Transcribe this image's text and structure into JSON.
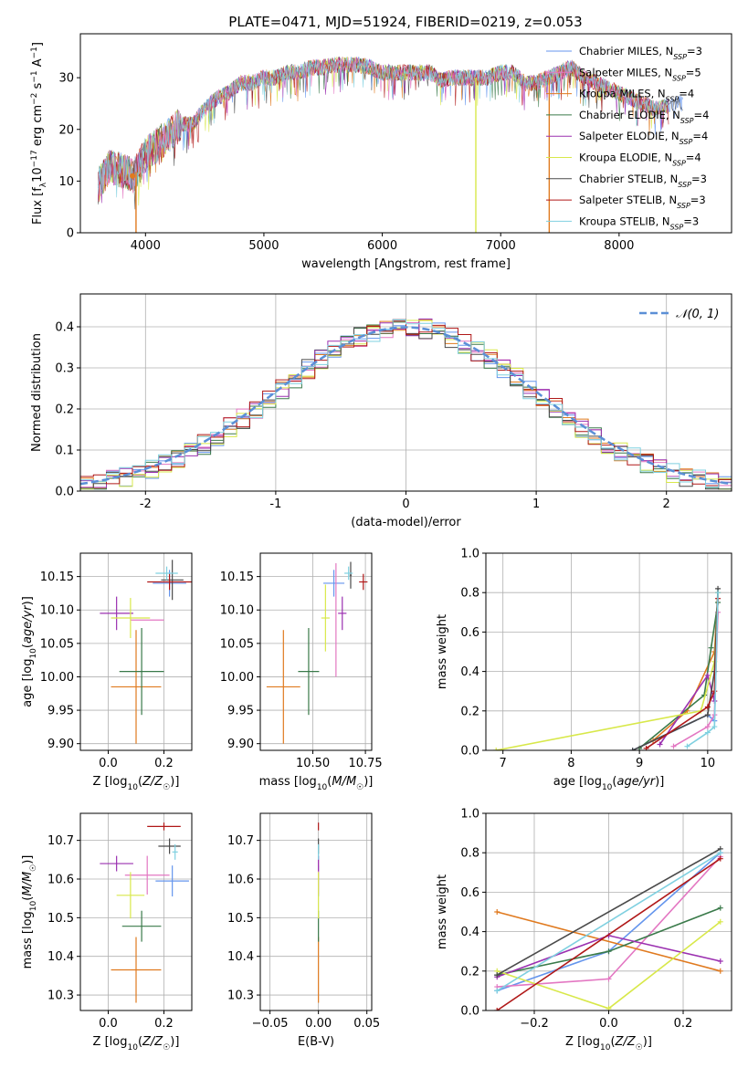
{
  "title": "PLATE=0471, MJD=51924, FIBERID=0219, z=0.053",
  "colors": [
    "#6495ed",
    "#e377c2",
    "#e07a1f",
    "#3a7a4a",
    "#9b30b0",
    "#d8e84a",
    "#4a4a4a",
    "#b01818",
    "#7fd0e0"
  ],
  "legend1": [
    "Chabrier MILES, N_SSP=3",
    "Salpeter MILES, N_SSP=5",
    "Kroupa MILES, N_SSP=4",
    "Chabrier ELODIE, N_SSP=4",
    "Salpeter ELODIE, N_SSP=4",
    "Kroupa ELODIE, N_SSP=4",
    "Chabrier STELIB, N_SSP=3",
    "Salpeter STELIB, N_SSP=3",
    "Kroupa STELIB, N_SSP=3"
  ],
  "legend2": "𝒩(0, 1)",
  "chart_data": [
    {
      "id": "spectrum",
      "type": "line",
      "xlabel": "wavelength [Angstrom, rest frame]",
      "ylabel": "Flux [f_λ 10^-17 erg cm^-2 s^-1 A^-1]",
      "xticks": [
        4000,
        5000,
        6000,
        7000,
        8000
      ],
      "yticks": [
        0,
        10,
        20,
        30
      ],
      "xlim": [
        3450,
        8950
      ],
      "ylim": [
        0,
        38.5
      ],
      "continuum": [
        [
          3600,
          9
        ],
        [
          3700,
          13
        ],
        [
          3800,
          12
        ],
        [
          3900,
          11
        ],
        [
          4000,
          15
        ],
        [
          4100,
          17
        ],
        [
          4200,
          19
        ],
        [
          4300,
          21
        ],
        [
          4400,
          21
        ],
        [
          4500,
          24
        ],
        [
          4600,
          26
        ],
        [
          4700,
          27
        ],
        [
          4800,
          29
        ],
        [
          4900,
          29
        ],
        [
          5000,
          30
        ],
        [
          5100,
          30
        ],
        [
          5200,
          31
        ],
        [
          5300,
          31
        ],
        [
          5400,
          32
        ],
        [
          5500,
          32
        ],
        [
          5600,
          32.5
        ],
        [
          5700,
          32.5
        ],
        [
          5800,
          32.5
        ],
        [
          5900,
          32
        ],
        [
          6000,
          31
        ],
        [
          6100,
          31
        ],
        [
          6200,
          31
        ],
        [
          6300,
          31
        ],
        [
          6400,
          31
        ],
        [
          6500,
          29.5
        ],
        [
          6600,
          30
        ],
        [
          6700,
          30
        ],
        [
          6800,
          30
        ],
        [
          6900,
          30
        ],
        [
          7000,
          31
        ],
        [
          7100,
          31
        ],
        [
          7200,
          29
        ],
        [
          7300,
          29
        ],
        [
          7400,
          30
        ],
        [
          7500,
          31
        ],
        [
          7600,
          32
        ],
        [
          7700,
          30
        ],
        [
          7800,
          29
        ],
        [
          7900,
          28
        ],
        [
          8000,
          27
        ],
        [
          8100,
          26
        ],
        [
          8200,
          25
        ],
        [
          8300,
          24
        ],
        [
          8400,
          24.5
        ],
        [
          8500,
          25
        ]
      ],
      "spikes": [
        [
          3920,
          "#e07a1f"
        ],
        [
          6790,
          "#d8e84a"
        ],
        [
          7410,
          "#e07a1f"
        ]
      ]
    },
    {
      "id": "residuals",
      "type": "histogram",
      "xlabel": "(data-model)/error",
      "ylabel": "Normed distribution",
      "xticks": [
        -2,
        -1,
        0,
        1,
        2
      ],
      "yticks": [
        0.0,
        0.1,
        0.2,
        0.3,
        0.4
      ],
      "xlim": [
        -2.5,
        2.5
      ],
      "ylim": [
        0,
        0.48
      ],
      "grid": true,
      "legend": "top-right"
    },
    {
      "id": "age_vs_Z",
      "type": "scatter",
      "xlabel": "Z [log10(Z/Z☉)]",
      "ylabel": "age  [log10(age/yr)]",
      "xticks": [
        0.0,
        0.2
      ],
      "yticks": [
        9.9,
        9.95,
        10.0,
        10.05,
        10.1,
        10.15
      ],
      "xlim": [
        -0.1,
        0.3
      ],
      "ylim": [
        9.89,
        10.185
      ],
      "points": [
        [
          0.22,
          10.14,
          0.06,
          0.02,
          0
        ],
        [
          0.14,
          10.085,
          0.06,
          0.0,
          1
        ],
        [
          0.1,
          9.985,
          0.09,
          0.085,
          2
        ],
        [
          0.12,
          10.008,
          0.08,
          0.065,
          3
        ],
        [
          0.03,
          10.095,
          0.06,
          0.025,
          4
        ],
        [
          0.08,
          10.088,
          0.07,
          0.03,
          5
        ],
        [
          0.23,
          10.145,
          0.04,
          0.03,
          6
        ],
        [
          0.22,
          10.142,
          0.08,
          0.012,
          7
        ],
        [
          0.21,
          10.155,
          0.04,
          0.01,
          8
        ]
      ]
    },
    {
      "id": "age_vs_mass",
      "type": "scatter",
      "xlabel": "mass [log10(M/M☉)]",
      "ylabel": "",
      "xticks": [
        10.5,
        10.75
      ],
      "yticks": [
        9.9,
        9.95,
        10.0,
        10.05,
        10.1,
        10.15
      ],
      "xlim": [
        10.25,
        10.78
      ],
      "ylim": [
        9.89,
        10.185
      ],
      "points": [
        [
          10.6,
          10.14,
          0.05,
          0.02,
          0
        ],
        [
          10.61,
          10.085,
          0.0,
          0.085,
          1
        ],
        [
          10.36,
          9.985,
          0.08,
          0.085,
          2
        ],
        [
          10.48,
          10.008,
          0.05,
          0.065,
          3
        ],
        [
          10.64,
          10.095,
          0.02,
          0.025,
          4
        ],
        [
          10.56,
          10.088,
          0.02,
          0.05,
          5
        ],
        [
          10.68,
          10.152,
          0.005,
          0.02,
          6
        ],
        [
          10.74,
          10.142,
          0.02,
          0.012,
          7
        ],
        [
          10.67,
          10.155,
          0.02,
          0.01,
          8
        ]
      ]
    },
    {
      "id": "weight_vs_age",
      "type": "line",
      "xlabel": "age  [log10(age/yr)]",
      "ylabel": "mass weight",
      "xticks": [
        7,
        8,
        9,
        10
      ],
      "yticks": [
        0.0,
        0.2,
        0.4,
        0.6,
        0.8,
        1.0
      ],
      "xlim": [
        6.75,
        10.35
      ],
      "ylim": [
        0,
        1
      ],
      "series": [
        [
          [
            8.9,
            0
          ],
          [
            10,
            0.18
          ],
          [
            10.1,
            0.15
          ],
          [
            10.15,
            0.8
          ]
        ],
        [
          [
            9.5,
            0.02
          ],
          [
            10,
            0.12
          ],
          [
            10.1,
            0.18
          ],
          [
            10.15,
            0.7
          ]
        ],
        [
          [
            9.2,
            0.05
          ],
          [
            9.7,
            0.2
          ],
          [
            10.1,
            0.5
          ],
          [
            10.15,
            0.8
          ]
        ],
        [
          [
            9,
            0.01
          ],
          [
            9.95,
            0.28
          ],
          [
            10.05,
            0.52
          ],
          [
            10.15,
            0.75
          ]
        ],
        [
          [
            9.3,
            0.03
          ],
          [
            10,
            0.38
          ],
          [
            10.1,
            0.25
          ],
          [
            10.15,
            0.8
          ]
        ],
        [
          [
            6.9,
            0
          ],
          [
            9.9,
            0.2
          ],
          [
            10.1,
            0.45
          ],
          [
            10.15,
            0.8
          ]
        ],
        [
          [
            8.9,
            0
          ],
          [
            10,
            0.18
          ],
          [
            10.1,
            0.4
          ],
          [
            10.15,
            0.82
          ]
        ],
        [
          [
            9.1,
            0.01
          ],
          [
            10,
            0.22
          ],
          [
            10.1,
            0.3
          ],
          [
            10.15,
            0.77
          ]
        ],
        [
          [
            9.7,
            0.02
          ],
          [
            10,
            0.09
          ],
          [
            10.1,
            0.12
          ],
          [
            10.15,
            0.8
          ]
        ]
      ]
    },
    {
      "id": "mass_vs_Z",
      "type": "scatter",
      "xlabel": "Z [log10(Z/Z☉)]",
      "ylabel": "mass [log10(M/M☉)]",
      "xticks": [
        0.0,
        0.2
      ],
      "yticks": [
        10.3,
        10.4,
        10.5,
        10.6,
        10.7
      ],
      "xlim": [
        -0.1,
        0.3
      ],
      "ylim": [
        10.26,
        10.77
      ],
      "points": [
        [
          0.23,
          10.595,
          0.06,
          0.04,
          0
        ],
        [
          0.14,
          10.61,
          0.08,
          0.05,
          1
        ],
        [
          0.1,
          10.365,
          0.09,
          0.085,
          2
        ],
        [
          0.12,
          10.478,
          0.07,
          0.04,
          3
        ],
        [
          0.03,
          10.64,
          0.06,
          0.02,
          4
        ],
        [
          0.08,
          10.558,
          0.05,
          0.06,
          5
        ],
        [
          0.22,
          10.685,
          0.04,
          0.02,
          6
        ],
        [
          0.2,
          10.736,
          0.06,
          0.01,
          7
        ],
        [
          0.24,
          10.67,
          0.01,
          0.02,
          8
        ]
      ]
    },
    {
      "id": "mass_vs_EBV",
      "type": "scatter",
      "xlabel": "E(B-V)",
      "ylabel": "",
      "xticks": [
        -0.05,
        0.0,
        0.05
      ],
      "yticks": [
        10.3,
        10.4,
        10.5,
        10.6,
        10.7
      ],
      "xlim": [
        -0.06,
        0.055
      ],
      "ylim": [
        10.26,
        10.77
      ],
      "points": [
        [
          0,
          10.595,
          0,
          0.04,
          0
        ],
        [
          0,
          10.61,
          0,
          0.05,
          1
        ],
        [
          0,
          10.365,
          0,
          0.085,
          2
        ],
        [
          0,
          10.478,
          0,
          0.04,
          3
        ],
        [
          0,
          10.64,
          0,
          0.02,
          4
        ],
        [
          0,
          10.558,
          0,
          0.06,
          5
        ],
        [
          0,
          10.685,
          0,
          0.02,
          6
        ],
        [
          0,
          10.736,
          0,
          0.01,
          7
        ],
        [
          0,
          10.67,
          0,
          0.02,
          8
        ]
      ]
    },
    {
      "id": "weight_vs_Z",
      "type": "line",
      "xlabel": "Z [log10(Z/Z☉)]",
      "ylabel": "mass weight",
      "xticks": [
        -0.2,
        0.0,
        0.2
      ],
      "yticks": [
        0.0,
        0.2,
        0.4,
        0.6,
        0.8,
        1.0
      ],
      "xlim": [
        -0.33,
        0.33
      ],
      "ylim": [
        0,
        1
      ],
      "series": [
        [
          [
            -0.3,
            0.1
          ],
          [
            0,
            0.3
          ],
          [
            0.3,
            0.8
          ]
        ],
        [
          [
            -0.3,
            0.12
          ],
          [
            0,
            0.16
          ],
          [
            0.3,
            0.78
          ]
        ],
        [
          [
            -0.3,
            0.5
          ],
          [
            0.3,
            0.2
          ]
        ],
        [
          [
            -0.3,
            0.18
          ],
          [
            0,
            0.3
          ],
          [
            0.3,
            0.52
          ]
        ],
        [
          [
            -0.3,
            0.17
          ],
          [
            0,
            0.38
          ],
          [
            0.3,
            0.25
          ]
        ],
        [
          [
            -0.3,
            0.2
          ],
          [
            0,
            0.01
          ],
          [
            0.3,
            0.45
          ]
        ],
        [
          [
            -0.3,
            0.18
          ],
          [
            0.3,
            0.82
          ]
        ],
        [
          [
            -0.3,
            0
          ],
          [
            0.3,
            0.77
          ]
        ],
        [
          [
            -0.3,
            0.1
          ],
          [
            0.3,
            0.8
          ]
        ]
      ]
    }
  ]
}
